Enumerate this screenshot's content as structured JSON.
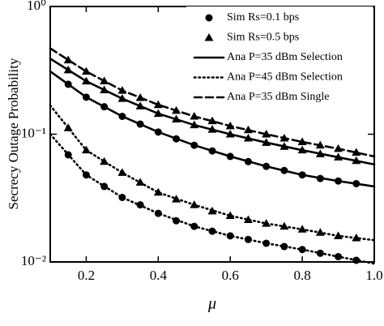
{
  "chart_data": {
    "type": "line",
    "xlabel": "μ",
    "ylabel": "Secrecy Outage Probability",
    "xlim": [
      0.1,
      1.0
    ],
    "ylim": [
      0.01,
      1
    ],
    "log_y": true,
    "xticks": [
      0.2,
      0.4,
      0.6,
      0.8,
      {
        "value": 1.0,
        "label": "1.0"
      }
    ],
    "yticks": [
      {
        "value": 0.01,
        "label": "10⁻²"
      },
      {
        "value": 0.1,
        "label": "10⁻¹"
      },
      {
        "value": 1,
        "label": "10⁰"
      }
    ],
    "legend": "upper right",
    "x": [
      0.1,
      0.2,
      0.3,
      0.4,
      0.5,
      0.6,
      0.7,
      0.8,
      0.9,
      1.0
    ],
    "marker_x": [
      0.15,
      0.2,
      0.25,
      0.3,
      0.35,
      0.4,
      0.45,
      0.5,
      0.55,
      0.6,
      0.65,
      0.7,
      0.75,
      0.8,
      0.85,
      0.9,
      0.95
    ],
    "series": [
      {
        "name": "Sim Rs=0.1 bps",
        "color": "#000000",
        "marker": "circle",
        "values": [
          [
            0.246,
            0.195,
            0.164,
            0.138,
            0.12,
            0.104,
            0.092,
            0.082,
            0.074,
            0.067,
            0.061,
            0.056,
            0.052,
            0.048,
            0.045,
            0.043,
            0.041
          ],
          [
            0.069,
            0.048,
            0.039,
            0.032,
            0.028,
            0.024,
            0.021,
            0.019,
            0.0174,
            0.016,
            0.015,
            0.014,
            0.0132,
            0.0125,
            0.0117,
            0.011,
            0.0103
          ]
        ]
      },
      {
        "name": "Sim Rs=0.5 bps",
        "color": "#000000",
        "marker": "triangle",
        "values": [
          [
            0.38,
            0.31,
            0.261,
            0.22,
            0.193,
            0.17,
            0.153,
            0.138,
            0.127,
            0.116,
            0.108,
            0.1,
            0.093,
            0.087,
            0.082,
            0.077,
            0.072
          ],
          [
            0.318,
            0.26,
            0.222,
            0.19,
            0.166,
            0.145,
            0.131,
            0.118,
            0.109,
            0.1,
            0.093,
            0.086,
            0.08,
            0.075,
            0.07,
            0.066,
            0.062
          ],
          [
            0.112,
            0.075,
            0.061,
            0.05,
            0.042,
            0.035,
            0.031,
            0.028,
            0.025,
            0.023,
            0.0214,
            0.02,
            0.019,
            0.018,
            0.017,
            0.016,
            0.0154
          ]
        ]
      },
      {
        "name": "Ana P=35 dBm Selection",
        "color": "#000000",
        "dash": "solid",
        "values": [
          [
            0.31,
            0.195,
            0.138,
            0.104,
            0.082,
            0.067,
            0.056,
            0.048,
            0.043,
            0.039
          ],
          [
            0.39,
            0.26,
            0.19,
            0.145,
            0.118,
            0.1,
            0.086,
            0.075,
            0.066,
            0.058
          ]
        ]
      },
      {
        "name": "Ana P=45 dBm Selection",
        "color": "#000000",
        "dash": "dotted",
        "values": [
          [
            0.1,
            0.048,
            0.032,
            0.024,
            0.019,
            0.016,
            0.014,
            0.0125,
            0.011,
            0.0097
          ],
          [
            0.168,
            0.075,
            0.05,
            0.035,
            0.028,
            0.023,
            0.02,
            0.018,
            0.016,
            0.0148
          ]
        ]
      },
      {
        "name": "Ana P=35 dBm Single",
        "color": "#000000",
        "dash": "dashed",
        "values": [
          [
            0.47,
            0.31,
            0.22,
            0.17,
            0.138,
            0.116,
            0.1,
            0.087,
            0.077,
            0.067
          ]
        ]
      }
    ]
  }
}
